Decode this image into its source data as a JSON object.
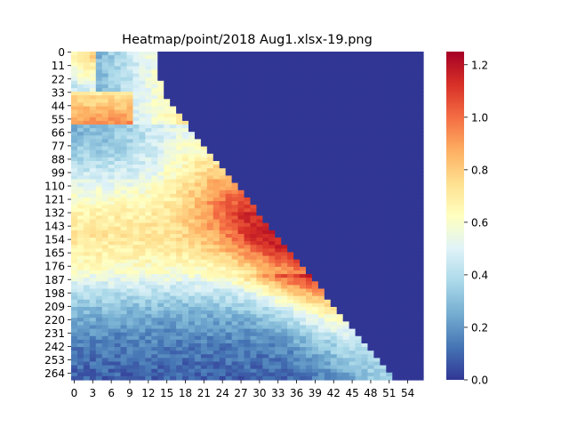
{
  "chart_data": {
    "type": "heatmap",
    "title": "Heatmap/point/2018 Aug1.xlsx-19.png",
    "xlabel": "",
    "ylabel": "",
    "n_cols": 57,
    "n_rows": 270,
    "x_tick_labels": [
      "0",
      "3",
      "6",
      "9",
      "12",
      "15",
      "18",
      "21",
      "24",
      "27",
      "30",
      "33",
      "36",
      "39",
      "42",
      "45",
      "48",
      "51",
      "54"
    ],
    "y_tick_labels": [
      "0",
      "11",
      "22",
      "33",
      "44",
      "55",
      "66",
      "77",
      "88",
      "99",
      "110",
      "121",
      "132",
      "143",
      "154",
      "165",
      "176",
      "187",
      "198",
      "209",
      "220",
      "231",
      "242",
      "253",
      "264"
    ],
    "colorbar": {
      "vmin": 0.0,
      "vmax": 1.25,
      "ticks": [
        "0.0",
        "0.2",
        "0.4",
        "0.6",
        "0.8",
        "1.0",
        "1.2"
      ],
      "colormap": "RdYlBu_r"
    },
    "upper_triangle_value": 0.0,
    "peak_region_value": 1.05,
    "lower_region_value": 0.2
  }
}
